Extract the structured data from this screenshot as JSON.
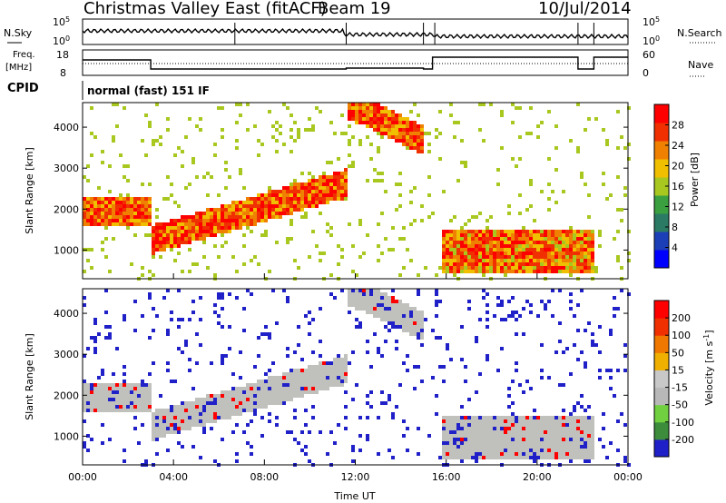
{
  "header": {
    "title": "Christmas Valley East (fitACF)",
    "beam": "Beam 19",
    "date": "10/Jul/2014"
  },
  "noise_panel": {
    "left_label": "N.Sky",
    "right_label": "N.Search",
    "left_ticks": [
      "10^5",
      "10^0"
    ],
    "right_ticks": [
      "10^5",
      "10^0"
    ]
  },
  "freq_panel": {
    "left_label_line1": "Freq.",
    "left_label_line2": "[MHz]",
    "right_label": "Nave",
    "left_ticks": [
      "18",
      "8"
    ],
    "right_ticks": [
      "60",
      "0"
    ]
  },
  "cpid": {
    "label": "CPID",
    "program": "normal (fast) 151 IF"
  },
  "chart_data": [
    {
      "type": "heatmap",
      "name": "power",
      "ylabel": "Slant Range [km]",
      "y_ticks": [
        "4000",
        "3000",
        "2000",
        "1000"
      ],
      "x_ticks": [
        "00:00",
        "04:00",
        "08:00",
        "12:00",
        "16:00",
        "20:00",
        "00:00"
      ],
      "colorbar_label": "Power [dB]",
      "colorbar_ticks": [
        "28",
        "24",
        "20",
        "16",
        "12",
        "8",
        "4"
      ],
      "colors": [
        "#0000ff",
        "#1c3fb8",
        "#2a7a64",
        "#3aa040",
        "#a8c820",
        "#f0c000",
        "#f08000",
        "#f03000",
        "#ff0000"
      ]
    },
    {
      "type": "heatmap",
      "name": "velocity",
      "ylabel": "Slant Range [km]",
      "y_ticks": [
        "4000",
        "3000",
        "2000",
        "1000"
      ],
      "x_ticks": [
        "00:00",
        "04:00",
        "08:00",
        "12:00",
        "16:00",
        "20:00",
        "00:00"
      ],
      "xlabel": "Time UT",
      "colorbar_label": "Velocity [m s^-1]",
      "colorbar_ticks": [
        "200",
        "100",
        "50",
        "15",
        "-15",
        "-50",
        "-100",
        "-200"
      ],
      "colors": [
        "#2020c8",
        "#3c8c3c",
        "#70d040",
        "#b8b8b8",
        "#c8c8c8",
        "#f0b000",
        "#f07800",
        "#f03000",
        "#ff0000"
      ]
    }
  ]
}
